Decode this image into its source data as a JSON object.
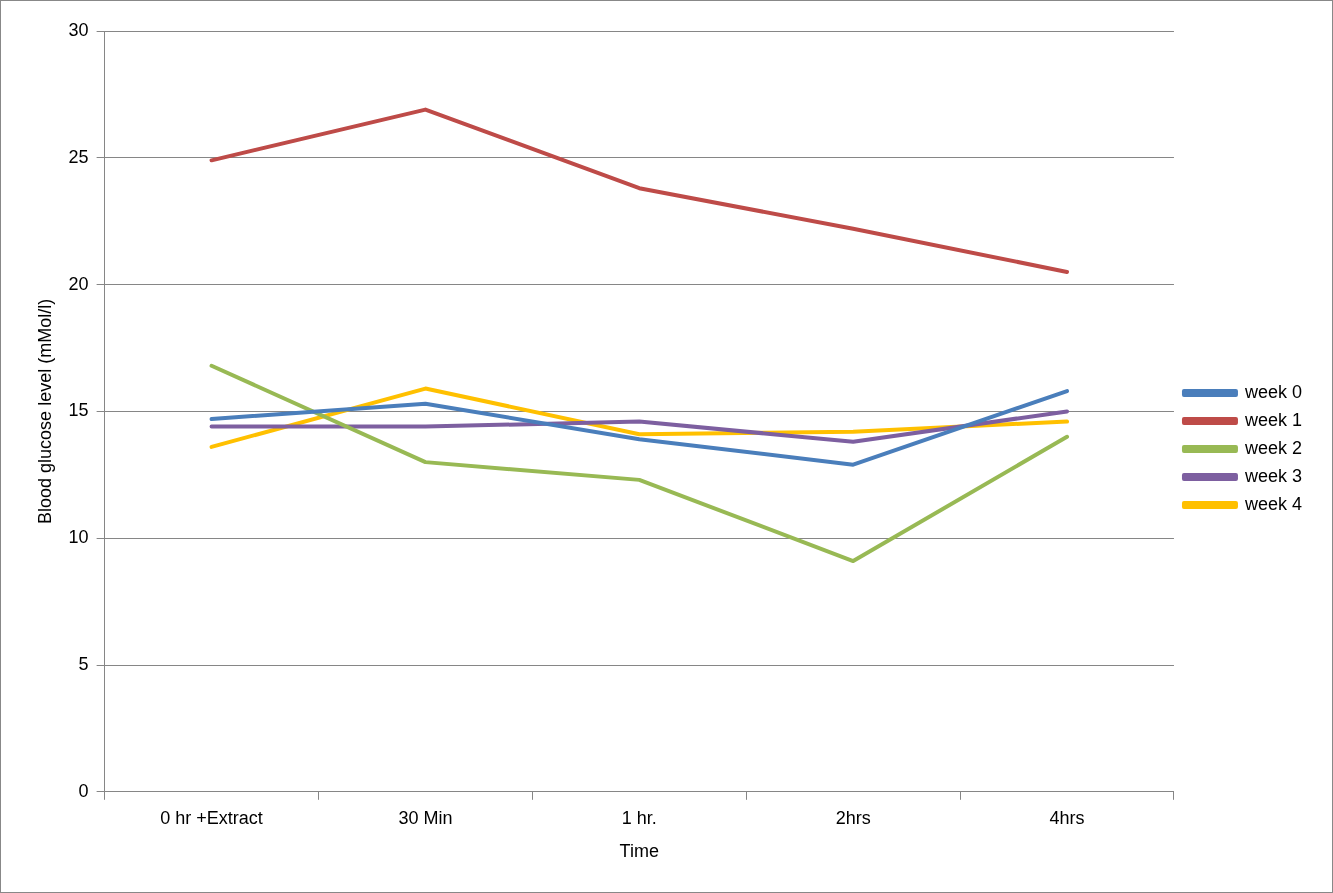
{
  "chart_data": {
    "type": "line",
    "xlabel": "Time",
    "ylabel": "Blood glucose level (mMol/l)",
    "categories": [
      "0 hr +Extract",
      "30 Min",
      "1 hr.",
      "2hrs",
      "4hrs"
    ],
    "series": [
      {
        "name": "week 0",
        "color": "#4a7ebb",
        "values": [
          14.7,
          15.3,
          13.9,
          12.9,
          15.8
        ]
      },
      {
        "name": "week 1",
        "color": "#be4b48",
        "values": [
          24.9,
          26.9,
          23.8,
          22.2,
          20.5
        ]
      },
      {
        "name": "week 2",
        "color": "#98b954",
        "values": [
          16.8,
          13.0,
          12.3,
          9.1,
          14.0
        ]
      },
      {
        "name": "week 3",
        "color": "#7d5fa0",
        "values": [
          14.4,
          14.4,
          14.6,
          13.8,
          15.0
        ]
      },
      {
        "name": "week 4",
        "color": "#ffc000",
        "values": [
          13.6,
          15.9,
          14.1,
          14.2,
          14.6
        ]
      }
    ],
    "ylim": [
      0,
      30
    ],
    "yticks": [
      0,
      5,
      10,
      15,
      20,
      25,
      30
    ],
    "grid": "y",
    "legend": "right",
    "marker": "none",
    "line_style": "solid"
  }
}
